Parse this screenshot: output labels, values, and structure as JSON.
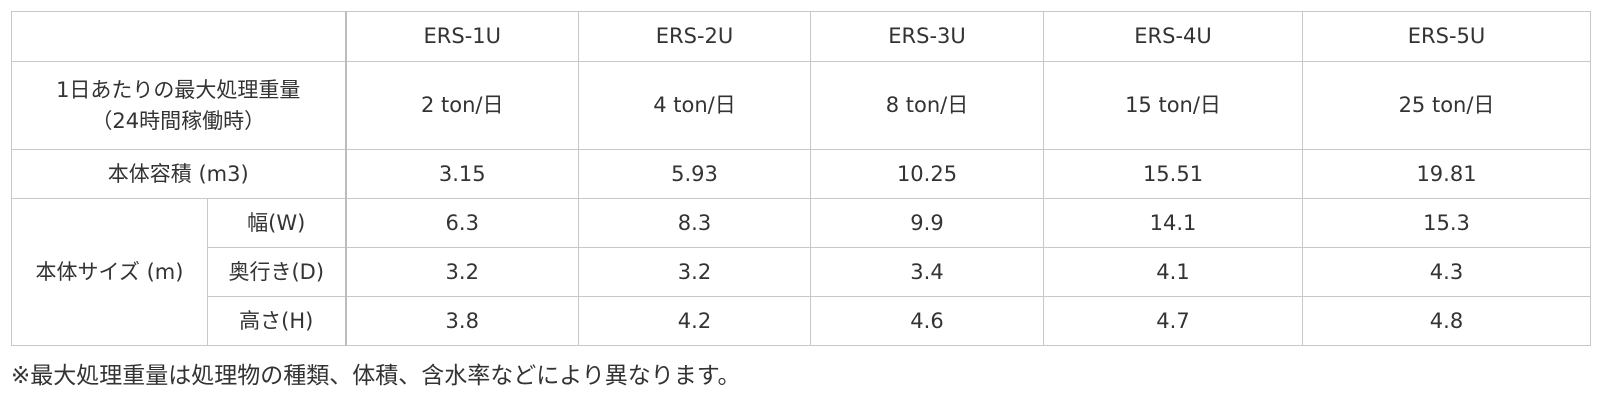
{
  "table": {
    "models": [
      "ERS-1U",
      "ERS-2U",
      "ERS-3U",
      "ERS-4U",
      "ERS-5U"
    ],
    "capacity": {
      "label_line1": "1日あたりの最大処理重量",
      "label_line2": "（24時間稼働時）",
      "values": [
        "2 ton/日",
        "4 ton/日",
        "8 ton/日",
        "15 ton/日",
        "25 ton/日"
      ]
    },
    "volume": {
      "label": "本体容積 (m3)",
      "values": [
        "3.15",
        "5.93",
        "10.25",
        "15.51",
        "19.81"
      ]
    },
    "size": {
      "label": "本体サイズ (m)",
      "width": {
        "label": "幅(W)",
        "values": [
          "6.3",
          "8.3",
          "9.9",
          "14.1",
          "15.3"
        ]
      },
      "depth": {
        "label": "奥行き(D)",
        "values": [
          "3.2",
          "3.2",
          "3.4",
          "4.1",
          "4.3"
        ]
      },
      "height": {
        "label": "高さ(H)",
        "values": [
          "3.8",
          "4.2",
          "4.6",
          "4.7",
          "4.8"
        ]
      }
    }
  },
  "note": "※最大処理重量は処理物の種類、体積、含水率などにより異なります。"
}
